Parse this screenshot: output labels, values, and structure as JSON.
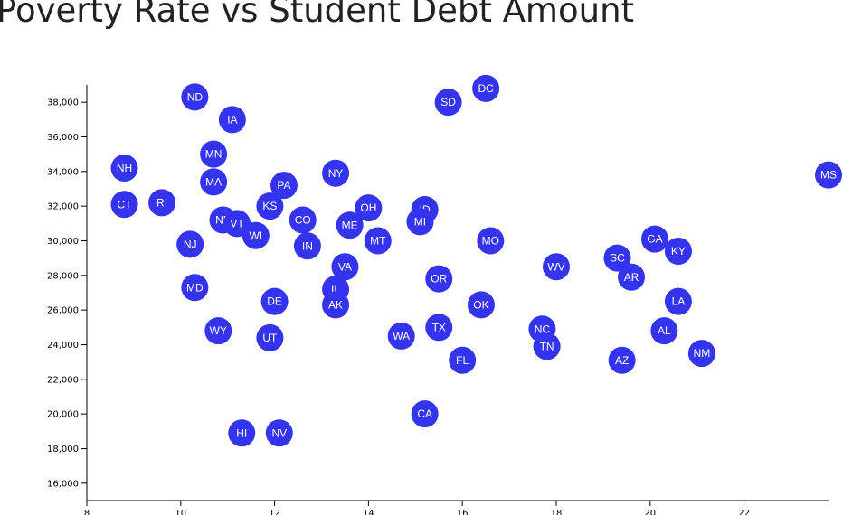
{
  "title": "Poverty Rate vs Student Debt Amount",
  "colors": {
    "marker": "#3434EE",
    "marker_text": "#ffffff",
    "axis": "#000000",
    "title": "#222222"
  },
  "chart_data": {
    "type": "scatter",
    "title": "Poverty Rate vs Student Debt Amount",
    "xlabel": "",
    "ylabel": "",
    "xlim": [
      8,
      23.8
    ],
    "ylim": [
      15000,
      39000
    ],
    "x_ticks": [
      8,
      10,
      12,
      14,
      16,
      18,
      20,
      22
    ],
    "y_ticks": [
      16000,
      18000,
      20000,
      22000,
      24000,
      26000,
      28000,
      30000,
      32000,
      34000,
      36000,
      38000
    ],
    "x_tick_labels": [
      "8",
      "10",
      "12",
      "14",
      "16",
      "18",
      "20",
      "22"
    ],
    "y_tick_labels": [
      "16,000",
      "18,000",
      "20,000",
      "22,000",
      "24,000",
      "26,000",
      "28,000",
      "30,000",
      "32,000",
      "34,000",
      "36,000",
      "38,000"
    ],
    "grid": false,
    "points": [
      {
        "label": "ND",
        "x": 10.3,
        "y": 38300
      },
      {
        "label": "IA",
        "x": 11.1,
        "y": 37000
      },
      {
        "label": "MN",
        "x": 10.7,
        "y": 35000
      },
      {
        "label": "MA",
        "x": 10.7,
        "y": 33400
      },
      {
        "label": "NH",
        "x": 8.8,
        "y": 34200
      },
      {
        "label": "CT",
        "x": 8.8,
        "y": 32100
      },
      {
        "label": "RI",
        "x": 9.6,
        "y": 32200
      },
      {
        "label": "NJ",
        "x": 10.2,
        "y": 29800
      },
      {
        "label": "NE",
        "x": 10.9,
        "y": 31200
      },
      {
        "label": "VT",
        "x": 11.2,
        "y": 31000
      },
      {
        "label": "WI",
        "x": 11.6,
        "y": 30300
      },
      {
        "label": "KS",
        "x": 11.9,
        "y": 32000
      },
      {
        "label": "PA",
        "x": 12.2,
        "y": 33200
      },
      {
        "label": "CO",
        "x": 12.6,
        "y": 31200
      },
      {
        "label": "IN",
        "x": 12.7,
        "y": 29700
      },
      {
        "label": "NY",
        "x": 13.3,
        "y": 33900
      },
      {
        "label": "OH",
        "x": 14.0,
        "y": 31900
      },
      {
        "label": "ME",
        "x": 13.6,
        "y": 30900
      },
      {
        "label": "MT",
        "x": 14.2,
        "y": 30000
      },
      {
        "label": "VA",
        "x": 13.5,
        "y": 28500
      },
      {
        "label": "IL",
        "x": 13.3,
        "y": 27200
      },
      {
        "label": "AK",
        "x": 13.3,
        "y": 26300
      },
      {
        "label": "MD",
        "x": 10.3,
        "y": 27300
      },
      {
        "label": "DE",
        "x": 12.0,
        "y": 26500
      },
      {
        "label": "WY",
        "x": 10.8,
        "y": 24800
      },
      {
        "label": "UT",
        "x": 11.9,
        "y": 24400
      },
      {
        "label": "HI",
        "x": 11.3,
        "y": 18900
      },
      {
        "label": "NV",
        "x": 12.1,
        "y": 18900
      },
      {
        "label": "SD",
        "x": 15.7,
        "y": 38000
      },
      {
        "label": "DC",
        "x": 16.5,
        "y": 38800
      },
      {
        "label": "ID",
        "x": 15.2,
        "y": 31800
      },
      {
        "label": "MI",
        "x": 15.1,
        "y": 31100
      },
      {
        "label": "MO",
        "x": 16.6,
        "y": 30000
      },
      {
        "label": "OR",
        "x": 15.5,
        "y": 27800
      },
      {
        "label": "OK",
        "x": 16.4,
        "y": 26300
      },
      {
        "label": "WA",
        "x": 14.7,
        "y": 24500
      },
      {
        "label": "TX",
        "x": 15.5,
        "y": 25000
      },
      {
        "label": "FL",
        "x": 16.0,
        "y": 23100
      },
      {
        "label": "CA",
        "x": 15.2,
        "y": 20000
      },
      {
        "label": "WV",
        "x": 18.0,
        "y": 28500
      },
      {
        "label": "NC",
        "x": 17.7,
        "y": 24900
      },
      {
        "label": "TN",
        "x": 17.8,
        "y": 23900
      },
      {
        "label": "SC",
        "x": 19.3,
        "y": 29000
      },
      {
        "label": "AR",
        "x": 19.6,
        "y": 27900
      },
      {
        "label": "GA",
        "x": 20.1,
        "y": 30100
      },
      {
        "label": "KY",
        "x": 20.6,
        "y": 29400
      },
      {
        "label": "LA",
        "x": 20.6,
        "y": 26500
      },
      {
        "label": "AL",
        "x": 20.3,
        "y": 24800
      },
      {
        "label": "AZ",
        "x": 19.4,
        "y": 23100
      },
      {
        "label": "NM",
        "x": 21.1,
        "y": 23500
      },
      {
        "label": "MS",
        "x": 23.8,
        "y": 33800
      }
    ]
  }
}
